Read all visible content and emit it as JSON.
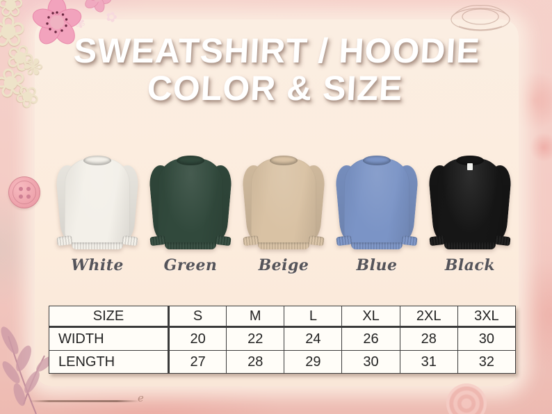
{
  "title": {
    "line1": "SWEATSHIRT / HOODIE",
    "line2": "COLOR & SIZE"
  },
  "products": [
    {
      "name": "White",
      "hex": "#f3f0e9"
    },
    {
      "name": "Green",
      "hex": "#31493c"
    },
    {
      "name": "Beige",
      "hex": "#d9c2a4"
    },
    {
      "name": "Blue",
      "hex": "#7b94c6"
    },
    {
      "name": "Black",
      "hex": "#161616"
    }
  ],
  "size_table": {
    "columns": [
      "SIZE",
      "S",
      "M",
      "L",
      "XL",
      "2XL",
      "3XL"
    ],
    "rows": [
      {
        "label": "WIDTH",
        "values": [
          "20",
          "22",
          "24",
          "26",
          "28",
          "30"
        ]
      },
      {
        "label": "LENGTH",
        "values": [
          "27",
          "28",
          "29",
          "30",
          "31",
          "32"
        ]
      }
    ]
  },
  "chart_data": {
    "type": "table",
    "title": "SWEATSHIRT / HOODIE COLOR & SIZE",
    "columns": [
      "SIZE",
      "S",
      "M",
      "L",
      "XL",
      "2XL",
      "3XL"
    ],
    "rows": [
      [
        "WIDTH",
        20,
        22,
        24,
        26,
        28,
        30
      ],
      [
        "LENGTH",
        27,
        28,
        29,
        30,
        31,
        32
      ]
    ],
    "color_options": [
      "White",
      "Green",
      "Beige",
      "Blue",
      "Black"
    ]
  },
  "colors": {
    "frame_pink": "#f4cbc4",
    "panel_cream": "#fbece0",
    "title_text": "#ffffff",
    "label_text": "#55545a",
    "table_background": "#fffdf8",
    "table_border": "#3a3a3a"
  },
  "decor": {
    "flower_glyph": "❀",
    "blossom_glyph": "✿",
    "sprig_glyph": "✾",
    "curl_glyph": "e"
  }
}
